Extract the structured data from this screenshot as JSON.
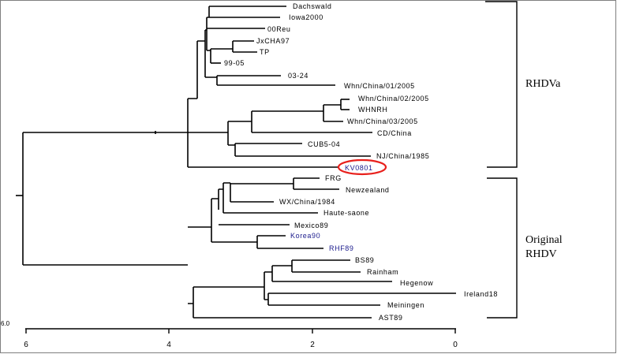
{
  "tree": {
    "leaves": [
      {
        "id": "dachswald",
        "label": "Dachswald"
      },
      {
        "id": "iowa2000",
        "label": "Iowa2000"
      },
      {
        "id": "00reu",
        "label": "00Reu"
      },
      {
        "id": "jxcha97",
        "label": "JxCHA97"
      },
      {
        "id": "tp",
        "label": "TP"
      },
      {
        "id": "99-05",
        "label": "99-05"
      },
      {
        "id": "03-24",
        "label": "03-24"
      },
      {
        "id": "whn-china-01-2005",
        "label": "Whn/China/01/2005"
      },
      {
        "id": "whn-china-02-2005",
        "label": "Whn/China/02/2005"
      },
      {
        "id": "whnrh",
        "label": "WHNRH"
      },
      {
        "id": "whn-china-03-2005",
        "label": "Whn/China/03/2005"
      },
      {
        "id": "cd-china",
        "label": "CD/China"
      },
      {
        "id": "cub5-04",
        "label": "CUB5-04"
      },
      {
        "id": "nj-china-1985",
        "label": "NJ/China/1985"
      },
      {
        "id": "kv0801",
        "label": "KV0801"
      },
      {
        "id": "frg",
        "label": "FRG"
      },
      {
        "id": "newzealand",
        "label": "Newzealand"
      },
      {
        "id": "wx-china-1984",
        "label": "WX/China/1984"
      },
      {
        "id": "haute-saone",
        "label": "Haute-saone"
      },
      {
        "id": "mexico89",
        "label": "Mexico89"
      },
      {
        "id": "korea90",
        "label": "Korea90"
      },
      {
        "id": "rhf89",
        "label": "RHF89"
      },
      {
        "id": "bs89",
        "label": "BS89"
      },
      {
        "id": "rainham",
        "label": "Rainham"
      },
      {
        "id": "hegenow",
        "label": "Hegenow"
      },
      {
        "id": "ireland18",
        "label": "Ireland18"
      },
      {
        "id": "meiningen",
        "label": "Meiningen"
      },
      {
        "id": "ast89",
        "label": "AST89"
      }
    ],
    "groups": {
      "rhdva": "RHDVa",
      "original_line1": "Original",
      "original_line2": "RHDV"
    },
    "highlight_color": "#e8201c",
    "blue_label_color": "#1a1a8c"
  },
  "axis": {
    "ticks": [
      "6",
      "4",
      "2",
      "0"
    ],
    "scale_label": "6.0"
  }
}
